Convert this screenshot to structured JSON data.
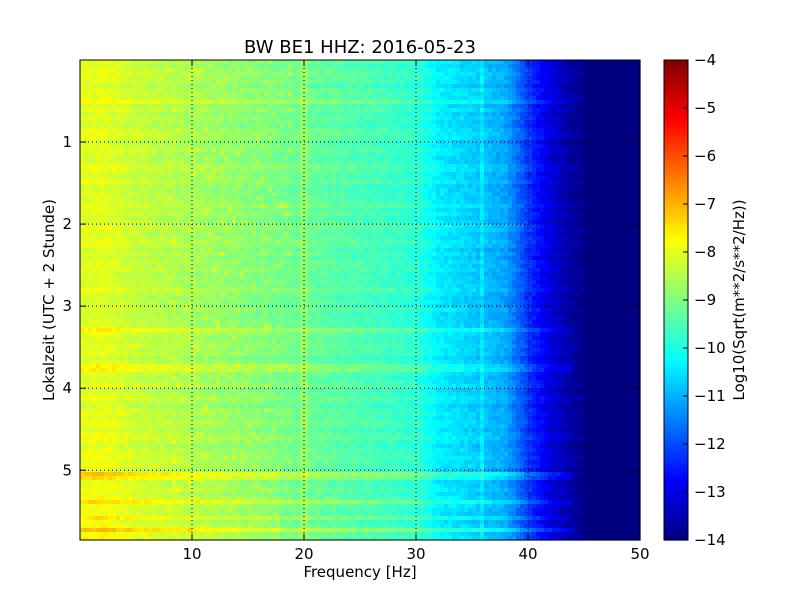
{
  "chart_data": {
    "type": "heatmap",
    "title": "BW BE1 HHZ: 2016-05-23",
    "xlabel": "Frequency [Hz]",
    "ylabel": "Lokalzeit (UTC + 2 Stunde)",
    "xlim": [
      0,
      50
    ],
    "ylim": [
      5.85,
      0
    ],
    "y_inverted": true,
    "x_ticks": [
      10,
      20,
      30,
      40,
      50
    ],
    "y_ticks": [
      1,
      2,
      3,
      4,
      5
    ],
    "grid": true,
    "colormap": "jet",
    "colorbar": {
      "label": "Log10(Sqrt(m**2/s**2/Hz))",
      "range": [
        -14,
        -4
      ],
      "ticks": [
        -4,
        -5,
        -6,
        -7,
        -8,
        -9,
        -10,
        -11,
        -12,
        -13,
        -14
      ]
    },
    "spectrum_profile": {
      "frequency_hz": [
        0,
        2,
        5,
        10,
        15,
        20,
        25,
        30,
        32,
        35,
        38,
        40,
        42,
        44,
        46,
        50
      ],
      "log10_amplitude": [
        -8.1,
        -8.0,
        -8.3,
        -8.6,
        -8.9,
        -9.2,
        -9.5,
        -9.8,
        -10.4,
        -10.7,
        -11.1,
        -12.2,
        -13.1,
        -13.7,
        -14.0,
        -14.0
      ]
    },
    "horizontal_bands": [
      {
        "hour": 3.3,
        "log10_offset": 0.5
      },
      {
        "hour": 3.75,
        "log10_offset": 0.4
      },
      {
        "hour": 5.08,
        "log10_offset": 0.6
      },
      {
        "hour": 5.4,
        "log10_offset": 0.6
      },
      {
        "hour": 5.58,
        "log10_offset": 0.5
      },
      {
        "hour": 5.72,
        "log10_offset": 0.6
      },
      {
        "hour": 0.5,
        "log10_offset": 0.3
      }
    ],
    "vertical_lines_hz": [
      20,
      36
    ]
  }
}
